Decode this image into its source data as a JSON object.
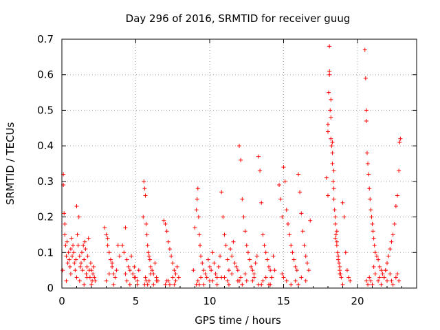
{
  "chart_data": {
    "type": "scatter",
    "title": "Day 296 of 2016, SRMTID for receiver guug",
    "xlabel": "GPS time / hours",
    "ylabel": "SRMTID / TECUs",
    "xlim": [
      0,
      24
    ],
    "ylim": [
      0,
      0.7
    ],
    "xticks": [
      0,
      5,
      10,
      15,
      20
    ],
    "xtick_labels": [
      "0",
      "5",
      "10",
      "15",
      "20"
    ],
    "yticks": [
      0,
      0.1,
      0.2,
      0.3,
      0.4,
      0.5,
      0.6,
      0.7
    ],
    "ytick_labels": [
      "0",
      "0.1",
      "0.2",
      "0.3",
      "0.4",
      "0.5",
      "0.6",
      "0.7"
    ],
    "grid": true,
    "marker": "+",
    "color": "#ff0000",
    "series": [
      {
        "name": "SRMTID",
        "x": [
          0.05,
          0.1,
          0.1,
          0.15,
          0.2,
          0.2,
          0.25,
          0.3,
          0.35,
          0.4,
          0.45,
          0.5,
          0.55,
          0.6,
          0.65,
          0.7,
          0.75,
          0.8,
          0.85,
          0.9,
          0.95,
          1.0,
          1.05,
          1.1,
          1.15,
          1.2,
          1.25,
          1.3,
          1.35,
          1.4,
          1.45,
          1.5,
          1.55,
          1.6,
          1.65,
          1.7,
          1.75,
          1.8,
          1.85,
          1.9,
          1.95,
          2.0,
          2.05,
          2.1,
          2.15,
          2.2,
          2.25,
          0.3,
          0.6,
          1.0,
          1.2,
          1.5,
          1.7,
          2.0,
          2.9,
          3.0,
          3.1,
          3.2,
          3.3,
          3.4,
          3.5,
          3.6,
          3.7,
          3.8,
          3.9,
          3.0,
          3.2,
          3.5,
          3.1,
          3.4,
          4.1,
          4.2,
          4.3,
          4.4,
          4.5,
          4.6,
          4.7,
          4.8,
          4.9,
          5.0,
          5.1,
          5.2,
          4.4,
          4.6,
          4.9,
          5.1,
          4.3,
          5.5,
          5.55,
          5.6,
          5.65,
          5.7,
          5.75,
          5.8,
          5.85,
          5.9,
          5.95,
          6.0,
          6.1,
          6.2,
          6.3,
          6.4,
          6.5,
          5.6,
          5.65,
          5.7,
          5.8,
          5.9,
          6.0,
          6.2,
          6.4,
          6.9,
          7.0,
          7.1,
          7.2,
          7.3,
          7.4,
          7.5,
          7.6,
          7.7,
          7.8,
          7.9,
          7.1,
          7.3,
          7.5,
          7.7,
          7.0,
          7.2,
          7.6,
          8.9,
          9.0,
          9.1,
          9.15,
          9.2,
          9.25,
          9.3,
          9.35,
          9.4,
          9.5,
          9.6,
          9.7,
          9.8,
          9.9,
          10.0,
          10.1,
          10.2,
          10.3,
          10.4,
          10.5,
          10.6,
          10.7,
          10.8,
          10.9,
          11.0,
          11.1,
          11.2,
          11.3,
          11.4,
          11.5,
          11.6,
          11.7,
          11.8,
          11.9,
          12.0,
          12.1,
          12.2,
          12.3,
          12.4,
          12.5,
          12.6,
          12.7,
          12.8,
          12.9,
          13.0,
          13.1,
          13.2,
          13.3,
          13.4,
          13.5,
          13.6,
          13.7,
          13.8,
          13.9,
          14.0,
          14.1,
          14.2,
          14.3,
          14.4,
          9.2,
          9.3,
          9.4,
          10.0,
          10.5,
          11.0,
          11.2,
          11.5,
          12.0,
          12.1,
          12.2,
          12.5,
          13.0,
          13.5,
          13.6,
          14.0,
          14.2,
          9.1,
          9.6,
          10.2,
          10.8,
          11.3,
          11.9,
          12.4,
          12.9,
          13.3,
          13.8,
          14.1,
          14.7,
          14.8,
          14.9,
          15.0,
          15.1,
          15.2,
          15.3,
          15.4,
          15.5,
          15.6,
          15.7,
          15.8,
          15.9,
          16.0,
          16.1,
          16.2,
          16.3,
          16.4,
          16.5,
          16.6,
          16.7,
          16.8,
          14.9,
          15.0,
          15.2,
          15.5,
          15.8,
          16.0,
          16.2,
          16.5,
          17.9,
          18.0,
          18.0,
          18.05,
          18.1,
          18.1,
          18.15,
          18.2,
          18.2,
          18.25,
          18.3,
          18.3,
          18.35,
          18.4,
          18.4,
          18.45,
          18.5,
          18.5,
          18.55,
          18.6,
          18.6,
          18.65,
          18.7,
          18.7,
          18.75,
          18.8,
          18.8,
          18.85,
          18.9,
          19.0,
          19.1,
          19.2,
          19.3,
          19.4,
          19.5,
          18.1,
          18.2,
          18.3,
          18.0,
          18.4,
          18.6,
          18.5,
          18.8,
          19.0,
          20.5,
          20.55,
          20.6,
          20.6,
          20.65,
          20.7,
          20.75,
          20.8,
          20.85,
          20.9,
          20.95,
          21.0,
          21.05,
          21.1,
          21.15,
          21.2,
          21.3,
          21.4,
          21.5,
          21.6,
          21.7,
          21.8,
          21.9,
          22.0,
          22.1,
          22.2,
          22.3,
          22.4,
          22.5,
          22.6,
          22.7,
          22.8,
          22.85,
          22.9,
          20.6,
          20.7,
          20.8,
          20.9,
          21.0,
          21.2,
          21.4,
          21.6,
          21.8,
          22.0,
          22.2,
          22.4,
          22.6,
          22.8,
          21.1,
          21.5,
          21.9,
          22.3,
          22.7
        ],
        "y": [
          0.05,
          0.29,
          0.32,
          0.21,
          0.18,
          0.15,
          0.12,
          0.09,
          0.13,
          0.07,
          0.1,
          0.08,
          0.06,
          0.11,
          0.14,
          0.09,
          0.12,
          0.1,
          0.07,
          0.05,
          0.08,
          0.23,
          0.15,
          0.12,
          0.2,
          0.09,
          0.06,
          0.07,
          0.1,
          0.05,
          0.12,
          0.08,
          0.13,
          0.11,
          0.04,
          0.06,
          0.09,
          0.14,
          0.05,
          0.03,
          0.07,
          0.05,
          0.02,
          0.04,
          0.06,
          0.03,
          0.02,
          0.02,
          0.04,
          0.03,
          0.02,
          0.01,
          0.03,
          0.01,
          0.17,
          0.15,
          0.12,
          0.1,
          0.08,
          0.06,
          0.04,
          0.03,
          0.05,
          0.12,
          0.09,
          0.02,
          0.04,
          0.01,
          0.14,
          0.07,
          0.12,
          0.1,
          0.17,
          0.08,
          0.06,
          0.05,
          0.09,
          0.04,
          0.06,
          0.03,
          0.02,
          0.05,
          0.02,
          0.01,
          0.03,
          0.01,
          0.04,
          0.2,
          0.3,
          0.28,
          0.26,
          0.18,
          0.15,
          0.12,
          0.1,
          0.09,
          0.08,
          0.06,
          0.05,
          0.04,
          0.07,
          0.03,
          0.02,
          0.01,
          0.03,
          0.02,
          0.01,
          0.02,
          0.04,
          0.01,
          0.02,
          0.19,
          0.18,
          0.16,
          0.13,
          0.11,
          0.09,
          0.07,
          0.05,
          0.04,
          0.06,
          0.03,
          0.02,
          0.01,
          0.03,
          0.02,
          0.01,
          0.02,
          0.01,
          0.05,
          0.17,
          0.22,
          0.25,
          0.28,
          0.2,
          0.15,
          0.12,
          0.09,
          0.07,
          0.05,
          0.04,
          0.03,
          0.08,
          0.06,
          0.05,
          0.1,
          0.07,
          0.04,
          0.03,
          0.06,
          0.09,
          0.27,
          0.2,
          0.15,
          0.12,
          0.08,
          0.05,
          0.11,
          0.09,
          0.13,
          0.07,
          0.06,
          0.05,
          0.4,
          0.36,
          0.25,
          0.2,
          0.16,
          0.12,
          0.1,
          0.08,
          0.06,
          0.05,
          0.04,
          0.07,
          0.09,
          0.37,
          0.33,
          0.24,
          0.15,
          0.12,
          0.1,
          0.08,
          0.06,
          0.05,
          0.03,
          0.09,
          0.05,
          0.02,
          0.01,
          0.03,
          0.02,
          0.01,
          0.03,
          0.02,
          0.04,
          0.02,
          0.03,
          0.01,
          0.02,
          0.03,
          0.01,
          0.02,
          0.01,
          0.03,
          0.01,
          0.01,
          0.02,
          0.03,
          0.01,
          0.02,
          0.04,
          0.02,
          0.01,
          0.03,
          0.01,
          0.29,
          0.25,
          0.2,
          0.34,
          0.3,
          0.22,
          0.18,
          0.15,
          0.12,
          0.1,
          0.08,
          0.06,
          0.05,
          0.32,
          0.27,
          0.21,
          0.16,
          0.12,
          0.09,
          0.07,
          0.05,
          0.19,
          0.04,
          0.03,
          0.02,
          0.01,
          0.02,
          0.01,
          0.03,
          0.02,
          0.31,
          0.46,
          0.44,
          0.55,
          0.68,
          0.6,
          0.5,
          0.48,
          0.42,
          0.4,
          0.38,
          0.35,
          0.3,
          0.28,
          0.25,
          0.22,
          0.2,
          0.18,
          0.15,
          0.13,
          0.12,
          0.1,
          0.09,
          0.08,
          0.07,
          0.06,
          0.05,
          0.04,
          0.03,
          0.24,
          0.2,
          0.1,
          0.05,
          0.03,
          0.02,
          0.61,
          0.53,
          0.41,
          0.26,
          0.33,
          0.16,
          0.14,
          0.04,
          0.01,
          0.67,
          0.59,
          0.5,
          0.47,
          0.38,
          0.35,
          0.32,
          0.28,
          0.25,
          0.22,
          0.2,
          0.18,
          0.16,
          0.14,
          0.12,
          0.1,
          0.09,
          0.08,
          0.06,
          0.05,
          0.04,
          0.03,
          0.05,
          0.07,
          0.09,
          0.11,
          0.13,
          0.15,
          0.18,
          0.23,
          0.26,
          0.33,
          0.41,
          0.42,
          0.02,
          0.01,
          0.03,
          0.02,
          0.01,
          0.04,
          0.02,
          0.01,
          0.03,
          0.02,
          0.04,
          0.01,
          0.03,
          0.02,
          0.06,
          0.03,
          0.05,
          0.02,
          0.04
        ]
      }
    ]
  }
}
